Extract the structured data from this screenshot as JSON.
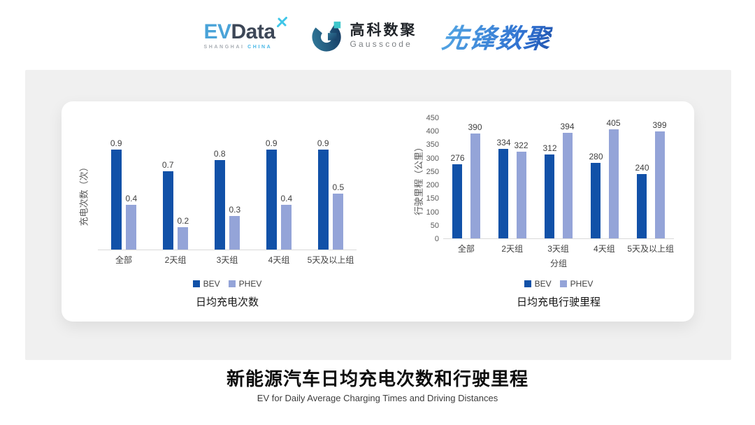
{
  "header": {
    "logos": {
      "evdata": {
        "text_ev": "EV",
        "text_data": "Data",
        "sub_left": "SHANGHAI",
        "sub_right": "CHINA"
      },
      "gausscode": {
        "cn": "高科数聚",
        "en": "Gausscode"
      },
      "xianfeng": {
        "cn": "先锋数聚"
      }
    }
  },
  "colors": {
    "bev": "#1151A8",
    "phev": "#94A4D8",
    "panel_gray": "#F0F0F0",
    "axis_text": "#595959",
    "evdata_blue": "#4AA3D8",
    "evdata_dark": "#3D4757",
    "evdata_cyan": "#3FC6E8",
    "gauss_teal": "#3EC6CB",
    "xianfeng_blue": "#2E6FD0"
  },
  "chart_data": [
    {
      "type": "bar",
      "title": "日均充电次数",
      "ylabel": "充电次数（次）",
      "xlabel": "",
      "categories": [
        "全部",
        "2天组",
        "3天组",
        "4天组",
        "5天及以上组"
      ],
      "series": [
        {
          "name": "BEV",
          "color": "#1151A8",
          "values": [
            0.9,
            0.7,
            0.8,
            0.9,
            0.9
          ]
        },
        {
          "name": "PHEV",
          "color": "#94A4D8",
          "values": [
            0.4,
            0.2,
            0.3,
            0.4,
            0.5
          ]
        }
      ],
      "ylim": [
        0,
        1.0
      ],
      "yticks": null,
      "grid": false,
      "data_labels": true,
      "legend_position": "bottom"
    },
    {
      "type": "bar",
      "title": "日均充电行驶里程",
      "ylabel": "行驶里程（公里）",
      "xlabel": "分组",
      "categories": [
        "全部",
        "2天组",
        "3天组",
        "4天组",
        "5天及以上组"
      ],
      "series": [
        {
          "name": "BEV",
          "color": "#1151A8",
          "values": [
            276,
            334,
            312,
            280,
            240
          ]
        },
        {
          "name": "PHEV",
          "color": "#94A4D8",
          "values": [
            390,
            322,
            394,
            405,
            399
          ]
        }
      ],
      "ylim": [
        0,
        450
      ],
      "yticks": [
        0,
        50,
        100,
        150,
        200,
        250,
        300,
        350,
        400,
        450
      ],
      "grid": false,
      "data_labels": true,
      "legend_position": "bottom"
    }
  ],
  "footer": {
    "title": "新能源汽车日均充电次数和行驶里程",
    "subtitle": "EV for Daily Average Charging Times and Driving Distances"
  }
}
